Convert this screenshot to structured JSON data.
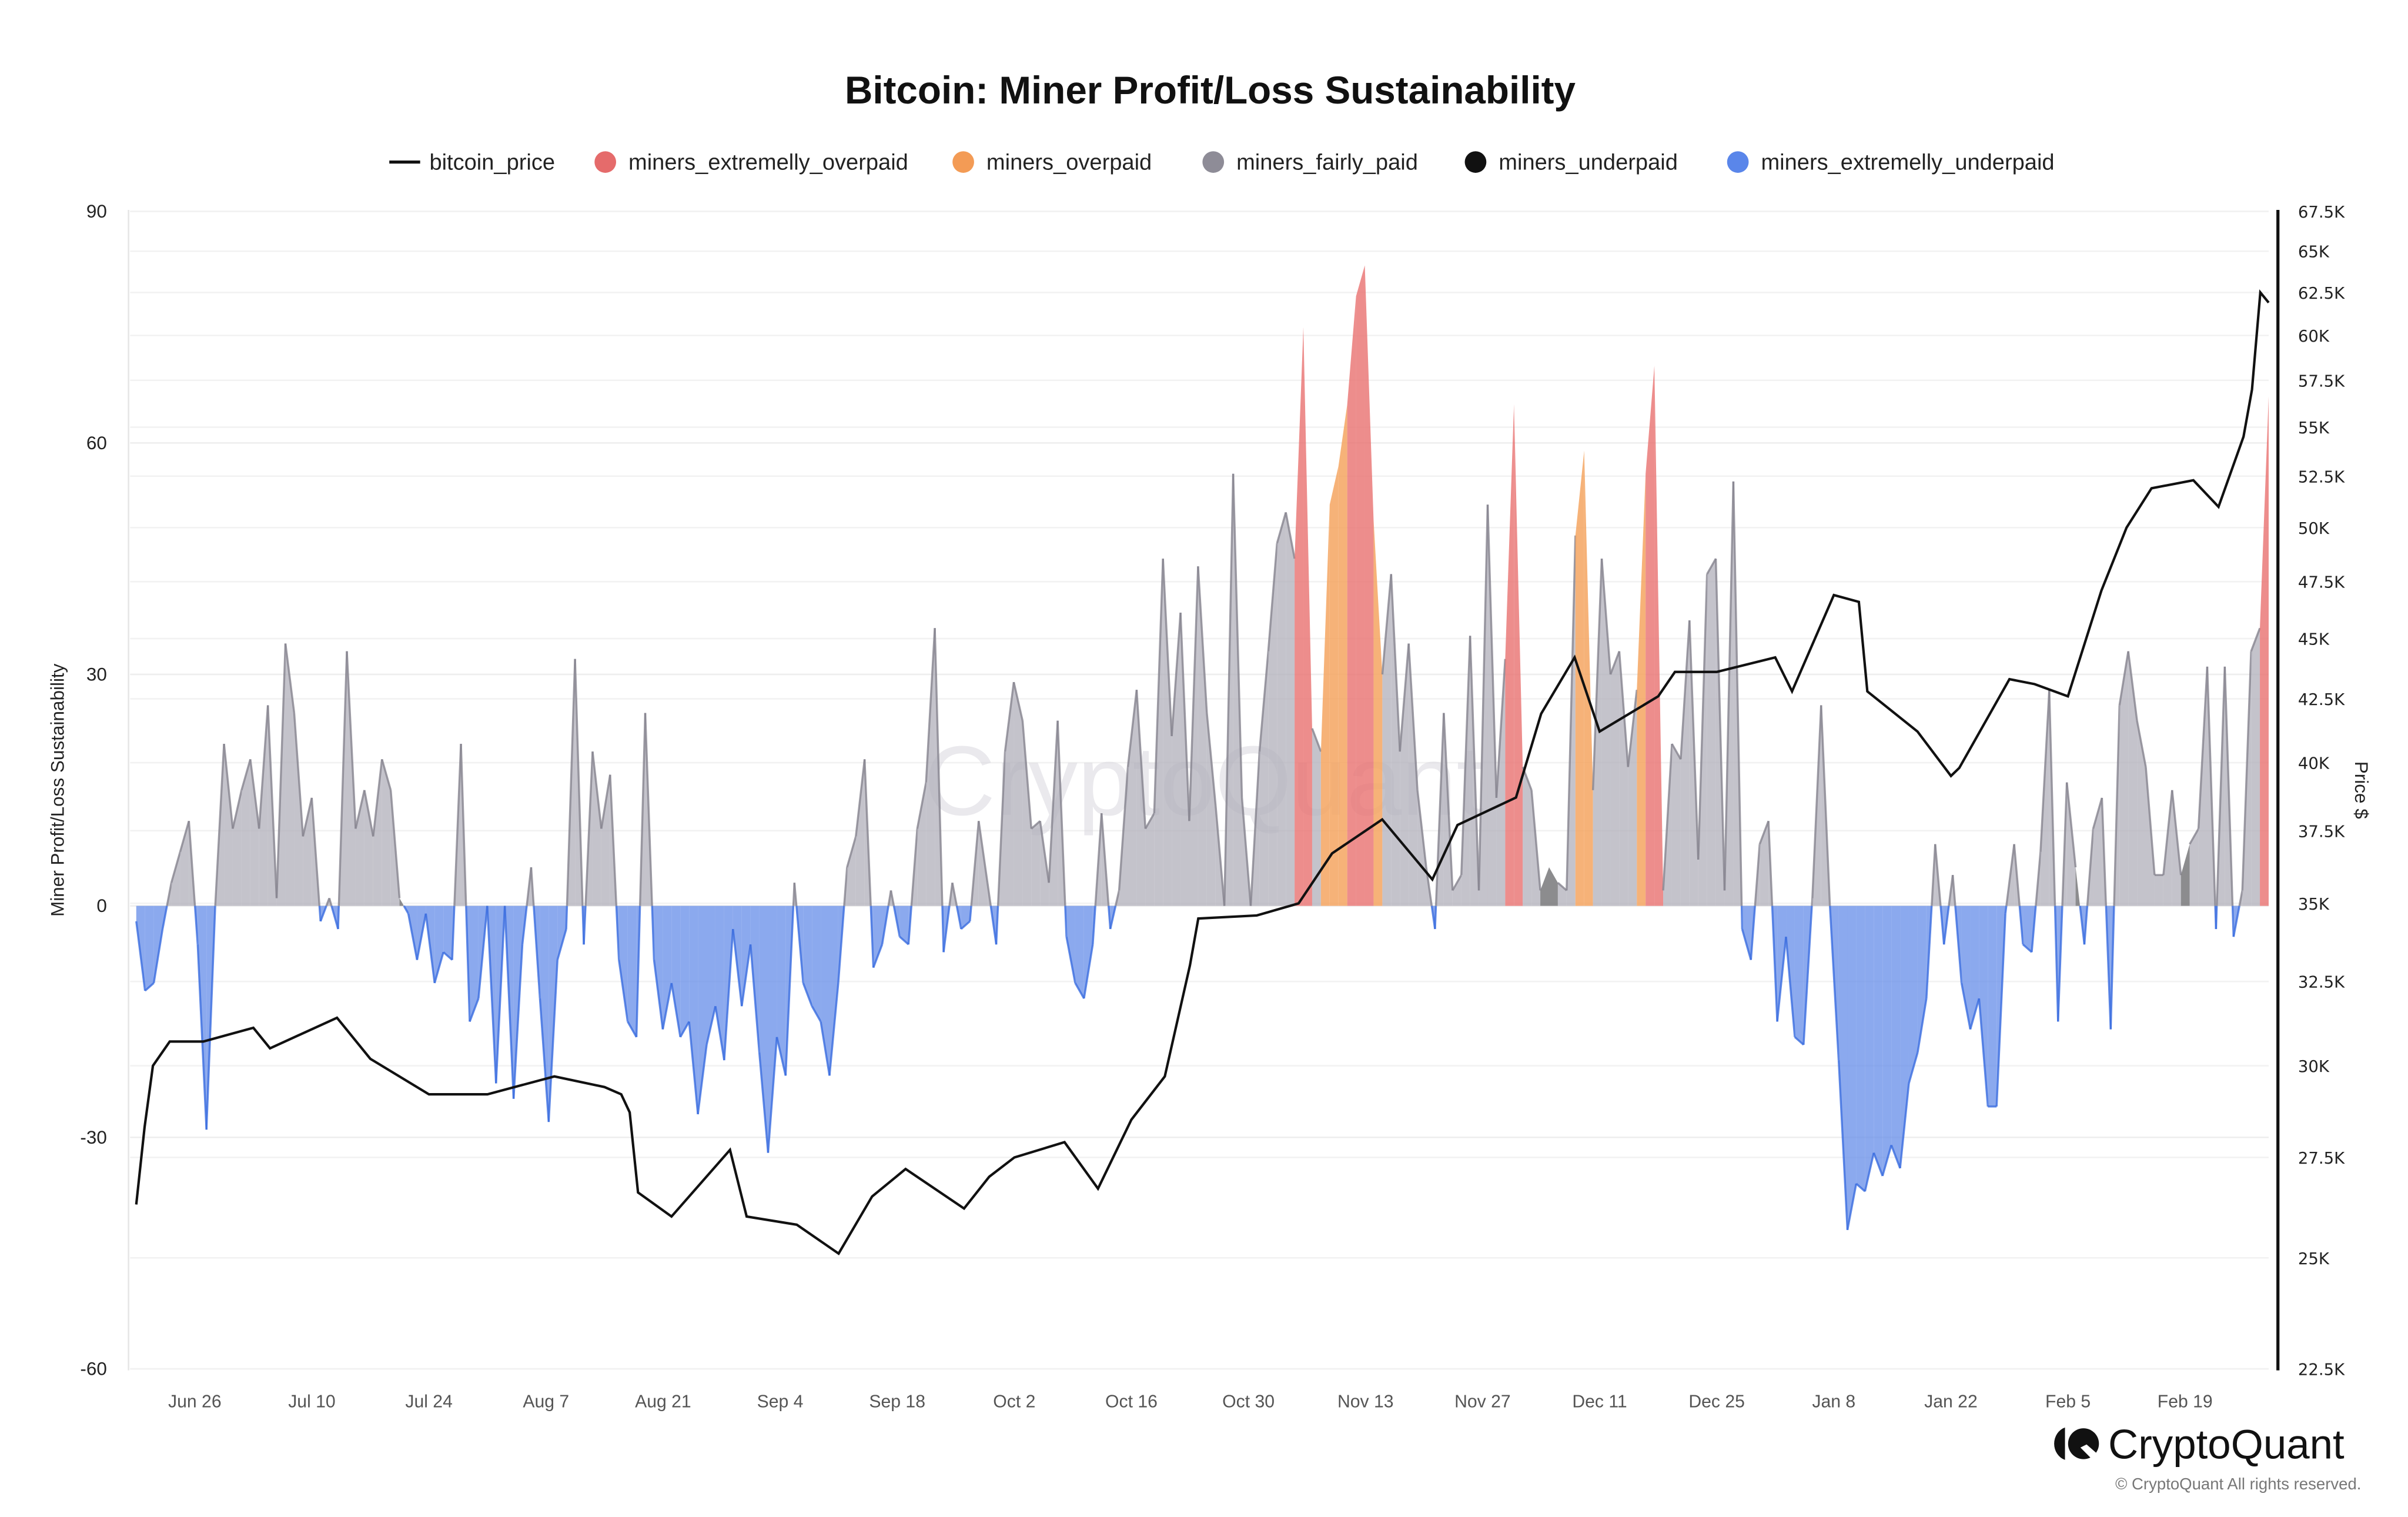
{
  "chart_data": {
    "type": "area",
    "title": "Bitcoin: Miner Profit/Loss Sustainability",
    "ylabel": "Miner Profit/Loss Sustainability",
    "y2label": "Price $",
    "ylim": [
      -60,
      90
    ],
    "y2lim": [
      22500,
      67500
    ],
    "y2scale": "log",
    "xlim": [
      "2023-06-19",
      "2024-02-29"
    ],
    "frequency": "daily",
    "grid": true,
    "legend_position": "top",
    "legend": [
      {
        "name": "bitcoin_price",
        "marker": "line",
        "color": "#111111"
      },
      {
        "name": "miners_extremelly_overpaid",
        "marker": "dot",
        "color": "#e56b6b"
      },
      {
        "name": "miners_overpaid",
        "marker": "dot",
        "color": "#f39b55"
      },
      {
        "name": "miners_fairly_paid",
        "marker": "dot",
        "color": "#8e8c97"
      },
      {
        "name": "miners_underpaid",
        "marker": "dot",
        "color": "#111111"
      },
      {
        "name": "miners_extremelly_underpaid",
        "marker": "dot",
        "color": "#5a86ea"
      }
    ],
    "category_codes": {
      "r": "miners_extremelly_overpaid",
      "o": "miners_overpaid",
      "g": "miners_fairly_paid",
      "k": "miners_underpaid",
      "b": "miners_extremelly_underpaid"
    },
    "yticks": [
      "90",
      "60",
      "30",
      "0",
      "-30",
      "-60"
    ],
    "y2ticks": [
      "67.5K",
      "65K",
      "62.5K",
      "60K",
      "57.5K",
      "55K",
      "52.5K",
      "50K",
      "47.5K",
      "45K",
      "42.5K",
      "40K",
      "37.5K",
      "35K",
      "32.5K",
      "30K",
      "27.5K",
      "25K",
      "22.5K"
    ],
    "xticks": [
      {
        "date": "2023-06-26",
        "label": "Jun 26"
      },
      {
        "date": "2023-07-10",
        "label": "Jul 10"
      },
      {
        "date": "2023-07-24",
        "label": "Jul 24"
      },
      {
        "date": "2023-08-07",
        "label": "Aug 7"
      },
      {
        "date": "2023-08-21",
        "label": "Aug 21"
      },
      {
        "date": "2023-09-04",
        "label": "Sep 4"
      },
      {
        "date": "2023-09-18",
        "label": "Sep 18"
      },
      {
        "date": "2023-10-02",
        "label": "Oct 2"
      },
      {
        "date": "2023-10-16",
        "label": "Oct 16"
      },
      {
        "date": "2023-10-30",
        "label": "Oct 30"
      },
      {
        "date": "2023-11-13",
        "label": "Nov 13"
      },
      {
        "date": "2023-11-27",
        "label": "Nov 27"
      },
      {
        "date": "2023-12-11",
        "label": "Dec 11"
      },
      {
        "date": "2023-12-25",
        "label": "Dec 25"
      },
      {
        "date": "2024-01-08",
        "label": "Jan 8"
      },
      {
        "date": "2024-01-22",
        "label": "Jan 22"
      },
      {
        "date": "2024-02-05",
        "label": "Feb 5"
      },
      {
        "date": "2024-02-19",
        "label": "Feb 19"
      }
    ],
    "sustainability": [
      [
        -2,
        "b"
      ],
      [
        -11,
        "b"
      ],
      [
        -10,
        "b"
      ],
      [
        -3,
        "b"
      ],
      [
        3,
        "g"
      ],
      [
        7,
        "g"
      ],
      [
        11,
        "g"
      ],
      [
        -5,
        "b"
      ],
      [
        -29,
        "b"
      ],
      [
        0,
        "g"
      ],
      [
        21,
        "g"
      ],
      [
        10,
        "g"
      ],
      [
        15,
        "g"
      ],
      [
        19,
        "g"
      ],
      [
        10,
        "g"
      ],
      [
        26,
        "g"
      ],
      [
        1,
        "g"
      ],
      [
        34,
        "g"
      ],
      [
        25,
        "g"
      ],
      [
        9,
        "g"
      ],
      [
        14,
        "g"
      ],
      [
        -2,
        "b"
      ],
      [
        1,
        "g"
      ],
      [
        -3,
        "b"
      ],
      [
        33,
        "g"
      ],
      [
        10,
        "g"
      ],
      [
        15,
        "g"
      ],
      [
        9,
        "g"
      ],
      [
        19,
        "g"
      ],
      [
        15,
        "g"
      ],
      [
        1,
        "k"
      ],
      [
        -1,
        "b"
      ],
      [
        -7,
        "b"
      ],
      [
        -1,
        "b"
      ],
      [
        -10,
        "b"
      ],
      [
        -6,
        "b"
      ],
      [
        -7,
        "b"
      ],
      [
        21,
        "g"
      ],
      [
        -15,
        "b"
      ],
      [
        -12,
        "b"
      ],
      [
        0,
        "g"
      ],
      [
        -23,
        "b"
      ],
      [
        0,
        "g"
      ],
      [
        -25,
        "b"
      ],
      [
        -5,
        "b"
      ],
      [
        5,
        "g"
      ],
      [
        -12,
        "b"
      ],
      [
        -28,
        "b"
      ],
      [
        -7,
        "b"
      ],
      [
        -3,
        "b"
      ],
      [
        32,
        "g"
      ],
      [
        -5,
        "b"
      ],
      [
        20,
        "g"
      ],
      [
        10,
        "g"
      ],
      [
        17,
        "g"
      ],
      [
        -7,
        "b"
      ],
      [
        -15,
        "b"
      ],
      [
        -17,
        "b"
      ],
      [
        25,
        "g"
      ],
      [
        -7,
        "b"
      ],
      [
        -16,
        "b"
      ],
      [
        -10,
        "b"
      ],
      [
        -17,
        "b"
      ],
      [
        -15,
        "b"
      ],
      [
        -27,
        "b"
      ],
      [
        -18,
        "b"
      ],
      [
        -13,
        "b"
      ],
      [
        -20,
        "b"
      ],
      [
        -3,
        "b"
      ],
      [
        -13,
        "b"
      ],
      [
        -5,
        "b"
      ],
      [
        -19,
        "b"
      ],
      [
        -32,
        "b"
      ],
      [
        -17,
        "b"
      ],
      [
        -22,
        "b"
      ],
      [
        3,
        "g"
      ],
      [
        -10,
        "b"
      ],
      [
        -13,
        "b"
      ],
      [
        -15,
        "b"
      ],
      [
        -22,
        "b"
      ],
      [
        -10,
        "b"
      ],
      [
        5,
        "g"
      ],
      [
        9,
        "g"
      ],
      [
        19,
        "g"
      ],
      [
        -8,
        "b"
      ],
      [
        -5,
        "b"
      ],
      [
        2,
        "g"
      ],
      [
        -4,
        "b"
      ],
      [
        -5,
        "b"
      ],
      [
        10,
        "g"
      ],
      [
        16,
        "g"
      ],
      [
        36,
        "g"
      ],
      [
        -6,
        "b"
      ],
      [
        3,
        "g"
      ],
      [
        -3,
        "b"
      ],
      [
        -2,
        "b"
      ],
      [
        11,
        "g"
      ],
      [
        3,
        "g"
      ],
      [
        -5,
        "b"
      ],
      [
        20,
        "g"
      ],
      [
        29,
        "g"
      ],
      [
        24,
        "g"
      ],
      [
        10,
        "g"
      ],
      [
        11,
        "g"
      ],
      [
        3,
        "k"
      ],
      [
        24,
        "g"
      ],
      [
        -4,
        "b"
      ],
      [
        -10,
        "b"
      ],
      [
        -12,
        "b"
      ],
      [
        -5,
        "b"
      ],
      [
        12,
        "g"
      ],
      [
        -3,
        "b"
      ],
      [
        2,
        "g"
      ],
      [
        18,
        "g"
      ],
      [
        28,
        "g"
      ],
      [
        10,
        "g"
      ],
      [
        12,
        "g"
      ],
      [
        45,
        "g"
      ],
      [
        22,
        "g"
      ],
      [
        38,
        "g"
      ],
      [
        11,
        "g"
      ],
      [
        44,
        "g"
      ],
      [
        25,
        "g"
      ],
      [
        13,
        "g"
      ],
      [
        0,
        "g"
      ],
      [
        56,
        "g"
      ],
      [
        14,
        "g"
      ],
      [
        0,
        "g"
      ],
      [
        20,
        "g"
      ],
      [
        33,
        "g"
      ],
      [
        47,
        "g"
      ],
      [
        51,
        "g"
      ],
      [
        45,
        "g"
      ],
      [
        75,
        "r"
      ],
      [
        23,
        "g"
      ],
      [
        20,
        "g"
      ],
      [
        52,
        "o"
      ],
      [
        57,
        "o"
      ],
      [
        65,
        "o"
      ],
      [
        79,
        "r"
      ],
      [
        83,
        "r"
      ],
      [
        50,
        "o"
      ],
      [
        30,
        "g"
      ],
      [
        43,
        "g"
      ],
      [
        20,
        "g"
      ],
      [
        34,
        "g"
      ],
      [
        15,
        "g"
      ],
      [
        5,
        "g"
      ],
      [
        -3,
        "b"
      ],
      [
        25,
        "g"
      ],
      [
        2,
        "k"
      ],
      [
        4,
        "g"
      ],
      [
        35,
        "g"
      ],
      [
        2,
        "k"
      ],
      [
        52,
        "g"
      ],
      [
        14,
        "g"
      ],
      [
        32,
        "g"
      ],
      [
        65,
        "r"
      ],
      [
        18,
        "g"
      ],
      [
        15,
        "g"
      ],
      [
        2,
        "g"
      ],
      [
        5,
        "k"
      ],
      [
        3,
        "g"
      ],
      [
        2,
        "k"
      ],
      [
        48,
        "g"
      ],
      [
        59,
        "o"
      ],
      [
        15,
        "g"
      ],
      [
        45,
        "g"
      ],
      [
        30,
        "g"
      ],
      [
        33,
        "g"
      ],
      [
        18,
        "g"
      ],
      [
        28,
        "g"
      ],
      [
        56,
        "o"
      ],
      [
        70,
        "r"
      ],
      [
        2,
        "g"
      ],
      [
        21,
        "g"
      ],
      [
        19,
        "g"
      ],
      [
        37,
        "g"
      ],
      [
        6,
        "g"
      ],
      [
        43,
        "g"
      ],
      [
        45,
        "g"
      ],
      [
        2,
        "g"
      ],
      [
        55,
        "g"
      ],
      [
        -3,
        "b"
      ],
      [
        -7,
        "b"
      ],
      [
        8,
        "g"
      ],
      [
        11,
        "g"
      ],
      [
        -15,
        "b"
      ],
      [
        -4,
        "b"
      ],
      [
        -17,
        "b"
      ],
      [
        -18,
        "b"
      ],
      [
        1,
        "g"
      ],
      [
        26,
        "g"
      ],
      [
        0,
        "g"
      ],
      [
        -20,
        "b"
      ],
      [
        -42,
        "b"
      ],
      [
        -36,
        "b"
      ],
      [
        -37,
        "b"
      ],
      [
        -32,
        "b"
      ],
      [
        -35,
        "b"
      ],
      [
        -31,
        "b"
      ],
      [
        -34,
        "b"
      ],
      [
        -23,
        "b"
      ],
      [
        -19,
        "b"
      ],
      [
        -12,
        "b"
      ],
      [
        8,
        "g"
      ],
      [
        -5,
        "b"
      ],
      [
        4,
        "g"
      ],
      [
        -10,
        "b"
      ],
      [
        -16,
        "b"
      ],
      [
        -12,
        "b"
      ],
      [
        -26,
        "b"
      ],
      [
        -26,
        "b"
      ],
      [
        -1,
        "b"
      ],
      [
        8,
        "g"
      ],
      [
        -5,
        "b"
      ],
      [
        -6,
        "b"
      ],
      [
        7,
        "g"
      ],
      [
        28,
        "g"
      ],
      [
        -15,
        "b"
      ],
      [
        16,
        "g"
      ],
      [
        5,
        "k"
      ],
      [
        -5,
        "b"
      ],
      [
        10,
        "g"
      ],
      [
        14,
        "g"
      ],
      [
        -16,
        "b"
      ],
      [
        26,
        "g"
      ],
      [
        33,
        "g"
      ],
      [
        24,
        "g"
      ],
      [
        18,
        "g"
      ],
      [
        4,
        "k"
      ],
      [
        4,
        "g"
      ],
      [
        15,
        "g"
      ],
      [
        4,
        "k"
      ],
      [
        8,
        "k"
      ],
      [
        10,
        "g"
      ],
      [
        31,
        "g"
      ],
      [
        -3,
        "b"
      ],
      [
        31,
        "g"
      ],
      [
        -4,
        "b"
      ],
      [
        2,
        "g"
      ],
      [
        33,
        "g"
      ],
      [
        36,
        "g"
      ],
      [
        66,
        "r"
      ]
    ],
    "bitcoin_price": [
      [
        "2023-06-19",
        26300
      ],
      [
        "2023-06-20",
        28300
      ],
      [
        "2023-06-21",
        30000
      ],
      [
        "2023-06-23",
        30700
      ],
      [
        "2023-06-27",
        30700
      ],
      [
        "2023-07-03",
        31100
      ],
      [
        "2023-07-05",
        30500
      ],
      [
        "2023-07-13",
        31400
      ],
      [
        "2023-07-17",
        30200
      ],
      [
        "2023-07-24",
        29200
      ],
      [
        "2023-07-31",
        29200
      ],
      [
        "2023-08-08",
        29700
      ],
      [
        "2023-08-14",
        29400
      ],
      [
        "2023-08-16",
        29200
      ],
      [
        "2023-08-17",
        28700
      ],
      [
        "2023-08-18",
        26600
      ],
      [
        "2023-08-22",
        26000
      ],
      [
        "2023-08-29",
        27700
      ],
      [
        "2023-08-31",
        26000
      ],
      [
        "2023-09-06",
        25800
      ],
      [
        "2023-09-11",
        25100
      ],
      [
        "2023-09-15",
        26500
      ],
      [
        "2023-09-19",
        27200
      ],
      [
        "2023-09-26",
        26200
      ],
      [
        "2023-09-29",
        27000
      ],
      [
        "2023-10-02",
        27500
      ],
      [
        "2023-10-08",
        27900
      ],
      [
        "2023-10-12",
        26700
      ],
      [
        "2023-10-16",
        28500
      ],
      [
        "2023-10-20",
        29700
      ],
      [
        "2023-10-23",
        33000
      ],
      [
        "2023-10-24",
        34500
      ],
      [
        "2023-10-31",
        34600
      ],
      [
        "2023-11-05",
        35000
      ],
      [
        "2023-11-09",
        36700
      ],
      [
        "2023-11-15",
        37900
      ],
      [
        "2023-11-21",
        35800
      ],
      [
        "2023-11-24",
        37700
      ],
      [
        "2023-12-01",
        38700
      ],
      [
        "2023-12-04",
        41900
      ],
      [
        "2023-12-08",
        44200
      ],
      [
        "2023-12-11",
        41200
      ],
      [
        "2023-12-18",
        42600
      ],
      [
        "2023-12-20",
        43600
      ],
      [
        "2023-12-25",
        43600
      ],
      [
        "2024-01-01",
        44200
      ],
      [
        "2024-01-03",
        42800
      ],
      [
        "2024-01-08",
        46900
      ],
      [
        "2024-01-11",
        46600
      ],
      [
        "2024-01-12",
        42800
      ],
      [
        "2024-01-18",
        41200
      ],
      [
        "2024-01-22",
        39500
      ],
      [
        "2024-01-23",
        39800
      ],
      [
        "2024-01-29",
        43300
      ],
      [
        "2024-02-01",
        43100
      ],
      [
        "2024-02-05",
        42600
      ],
      [
        "2024-02-09",
        47100
      ],
      [
        "2024-02-12",
        50000
      ],
      [
        "2024-02-15",
        51900
      ],
      [
        "2024-02-20",
        52300
      ],
      [
        "2024-02-23",
        51000
      ],
      [
        "2024-02-26",
        54500
      ],
      [
        "2024-02-27",
        57000
      ],
      [
        "2024-02-28",
        62500
      ],
      [
        "2024-02-29",
        61900
      ]
    ]
  },
  "watermark": "CryptoQuant",
  "branding": {
    "logo_text": "CryptoQuant",
    "copyright": "© CryptoQuant All rights reserved."
  }
}
